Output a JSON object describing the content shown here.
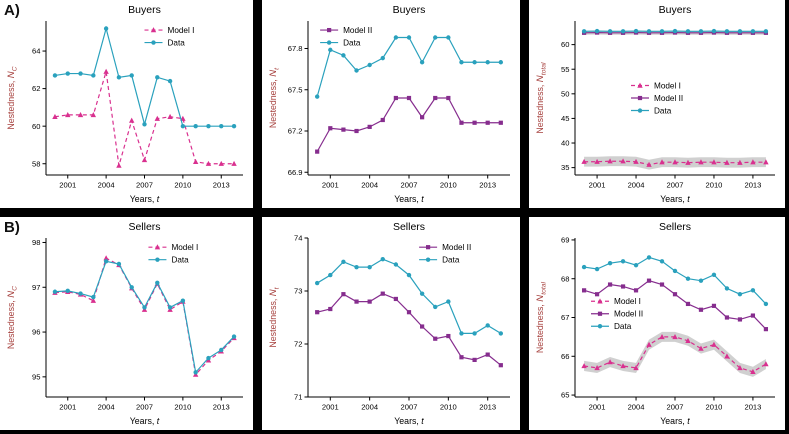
{
  "page": {
    "label_a": "A)",
    "label_b": "B)"
  },
  "colors": {
    "model1": "#d9308f",
    "model2": "#862d8e",
    "data": "#2aa1bd",
    "band": "#c8c8c8",
    "axis_label": "#a6403d",
    "axis": "#000000",
    "background": "#ffffff",
    "divider": "#000000"
  },
  "legend_labels": {
    "model1": "Model I",
    "model2": "Model II",
    "data": "Data"
  },
  "series_styles": {
    "model1": {
      "dash": "4 3",
      "marker": "triangle"
    },
    "model2": {
      "dash": "",
      "marker": "square"
    },
    "data": {
      "dash": "",
      "marker": "circle"
    }
  },
  "chart_data": [
    {
      "id": "buyers-nc",
      "type": "line",
      "title": "Buyers",
      "xlabel": {
        "pre": "Years, ",
        "var": "t"
      },
      "ylabel": {
        "pre": "Nestedness, ",
        "var": "N",
        "sub": "C"
      },
      "x": [
        2000,
        2001,
        2002,
        2003,
        2004,
        2005,
        2006,
        2007,
        2008,
        2009,
        2010,
        2011,
        2012,
        2013,
        2014
      ],
      "xlim": [
        1999.3,
        2014.7
      ],
      "xticks": [
        2001,
        2004,
        2007,
        2010,
        2013
      ],
      "ylim": [
        57.4,
        65.6
      ],
      "yticks": [
        58,
        60,
        62,
        64
      ],
      "legend": {
        "position": "top-right",
        "x": 0.5,
        "y": 0.02,
        "items": [
          "model1",
          "data"
        ]
      },
      "series": [
        {
          "key": "model1",
          "name": "Model I",
          "values": [
            60.5,
            60.6,
            60.6,
            60.6,
            62.9,
            57.9,
            60.3,
            58.2,
            60.4,
            60.5,
            60.4,
            58.1,
            58.0,
            58.0,
            58.0
          ]
        },
        {
          "key": "data",
          "name": "Data",
          "values": [
            62.7,
            62.8,
            62.8,
            62.7,
            65.2,
            62.6,
            62.7,
            60.1,
            62.6,
            62.4,
            60.0,
            60.0,
            60.0,
            60.0,
            60.0
          ]
        }
      ]
    },
    {
      "id": "buyers-nt",
      "type": "line",
      "title": "Buyers",
      "xlabel": {
        "pre": "Years, ",
        "var": "t"
      },
      "ylabel": {
        "pre": "Nestedness, ",
        "var": "N",
        "sub": "t"
      },
      "x": [
        2000,
        2001,
        2002,
        2003,
        2004,
        2005,
        2006,
        2007,
        2008,
        2009,
        2010,
        2011,
        2012,
        2013,
        2014
      ],
      "xlim": [
        1999.3,
        2014.7
      ],
      "xticks": [
        2001,
        2004,
        2007,
        2010,
        2013
      ],
      "ylim": [
        66.88,
        68.0
      ],
      "yticks": [
        66.9,
        67.2,
        67.5,
        67.8
      ],
      "legend": {
        "position": "top-left",
        "x": 0.06,
        "y": 0.02,
        "items": [
          "model2",
          "data"
        ]
      },
      "series": [
        {
          "key": "model2",
          "name": "Model II",
          "values": [
            67.05,
            67.22,
            67.21,
            67.2,
            67.23,
            67.28,
            67.44,
            67.44,
            67.3,
            67.44,
            67.44,
            67.26,
            67.26,
            67.26,
            67.26
          ]
        },
        {
          "key": "data",
          "name": "Data",
          "values": [
            67.45,
            67.79,
            67.75,
            67.64,
            67.68,
            67.73,
            67.88,
            67.88,
            67.7,
            67.88,
            67.88,
            67.7,
            67.7,
            67.7,
            67.7
          ]
        }
      ]
    },
    {
      "id": "buyers-ntotal",
      "type": "line",
      "title": "Buyers",
      "xlabel": {
        "pre": "Years, ",
        "var": "t"
      },
      "ylabel": {
        "pre": "Nestedness, ",
        "var": "N",
        "sub": "total"
      },
      "x": [
        2000,
        2001,
        2002,
        2003,
        2004,
        2005,
        2006,
        2007,
        2008,
        2009,
        2010,
        2011,
        2012,
        2013,
        2014
      ],
      "xlim": [
        1999.3,
        2014.7
      ],
      "xticks": [
        2001,
        2004,
        2007,
        2010,
        2013
      ],
      "ylim": [
        33.5,
        64.8
      ],
      "yticks": [
        35,
        40,
        45,
        50,
        55,
        60
      ],
      "legend": {
        "position": "middle-left",
        "x": 0.28,
        "y": 0.38,
        "items": [
          "model1",
          "model2",
          "data"
        ]
      },
      "series": [
        {
          "key": "model1",
          "name": "Model I",
          "band": 1.0,
          "values": [
            36.2,
            36.2,
            36.3,
            36.3,
            36.2,
            35.6,
            36.1,
            36.1,
            36.0,
            36.1,
            36.1,
            36.0,
            36.0,
            36.1,
            36.1
          ]
        },
        {
          "key": "model2",
          "name": "Model II",
          "band": 0.4,
          "values": [
            62.4,
            62.45,
            62.4,
            62.4,
            62.45,
            62.4,
            62.4,
            62.45,
            62.4,
            62.4,
            62.45,
            62.4,
            62.4,
            62.4,
            62.4
          ]
        },
        {
          "key": "data",
          "name": "Data",
          "values": [
            62.7,
            62.75,
            62.7,
            62.7,
            62.75,
            62.7,
            62.7,
            62.75,
            62.7,
            62.7,
            62.75,
            62.7,
            62.7,
            62.7,
            62.7
          ]
        }
      ]
    },
    {
      "id": "sellers-nc",
      "type": "line",
      "title": "Sellers",
      "xlabel": {
        "pre": "Years, ",
        "var": "t"
      },
      "ylabel": {
        "pre": "Nestedness, ",
        "var": "N",
        "sub": "C"
      },
      "x": [
        2000,
        2001,
        2002,
        2003,
        2004,
        2005,
        2006,
        2007,
        2008,
        2009,
        2010,
        2011,
        2012,
        2013,
        2014
      ],
      "xlim": [
        1999.3,
        2014.7
      ],
      "xticks": [
        2001,
        2004,
        2007,
        2010,
        2013
      ],
      "ylim": [
        94.55,
        98.1
      ],
      "yticks": [
        95,
        96,
        97,
        98
      ],
      "legend": {
        "position": "top-right",
        "x": 0.52,
        "y": 0.02,
        "items": [
          "model1",
          "data"
        ]
      },
      "series": [
        {
          "key": "model1",
          "name": "Model I",
          "values": [
            96.88,
            96.9,
            96.84,
            96.7,
            97.65,
            97.5,
            96.98,
            96.5,
            97.08,
            96.5,
            96.68,
            95.05,
            95.37,
            95.57,
            95.87
          ]
        },
        {
          "key": "data",
          "name": "Data",
          "values": [
            96.9,
            96.92,
            96.86,
            96.78,
            97.58,
            97.52,
            97.0,
            96.55,
            97.1,
            96.55,
            96.7,
            95.1,
            95.42,
            95.6,
            95.9
          ]
        }
      ]
    },
    {
      "id": "sellers-nt",
      "type": "line",
      "title": "Sellers",
      "xlabel": {
        "pre": "Years, ",
        "var": "t"
      },
      "ylabel": {
        "pre": "Nestedness, ",
        "var": "N",
        "sub": "t"
      },
      "x": [
        2000,
        2001,
        2002,
        2003,
        2004,
        2005,
        2006,
        2007,
        2008,
        2009,
        2010,
        2011,
        2012,
        2013,
        2014
      ],
      "xlim": [
        1999.3,
        2014.7
      ],
      "xticks": [
        2001,
        2004,
        2007,
        2010,
        2013
      ],
      "ylim": [
        71,
        74
      ],
      "yticks": [
        71,
        72,
        73,
        74
      ],
      "legend": {
        "position": "top-right",
        "x": 0.55,
        "y": 0.02,
        "items": [
          "model2",
          "data"
        ]
      },
      "series": [
        {
          "key": "model2",
          "name": "Model II",
          "values": [
            72.6,
            72.66,
            72.94,
            72.8,
            72.8,
            72.95,
            72.85,
            72.6,
            72.33,
            72.1,
            72.15,
            71.75,
            71.7,
            71.8,
            71.6
          ]
        },
        {
          "key": "data",
          "name": "Data",
          "values": [
            73.15,
            73.3,
            73.55,
            73.45,
            73.45,
            73.6,
            73.5,
            73.3,
            72.95,
            72.7,
            72.8,
            72.2,
            72.2,
            72.35,
            72.2
          ]
        }
      ]
    },
    {
      "id": "sellers-ntotal",
      "type": "line",
      "title": "Sellers",
      "xlabel": {
        "pre": "Years, ",
        "var": "t"
      },
      "ylabel": {
        "pre": "Nestedness, ",
        "var": "N",
        "sub": "total"
      },
      "x": [
        2000,
        2001,
        2002,
        2003,
        2004,
        2005,
        2006,
        2007,
        2008,
        2009,
        2010,
        2011,
        2012,
        2013,
        2014
      ],
      "xlim": [
        1999.3,
        2014.7
      ],
      "xticks": [
        2001,
        2004,
        2007,
        2010,
        2013
      ],
      "ylim": [
        64.95,
        69.05
      ],
      "yticks": [
        65,
        66,
        67,
        68,
        69
      ],
      "legend": {
        "position": "middle-left",
        "x": 0.08,
        "y": 0.36,
        "items": [
          "model1",
          "model2",
          "data"
        ]
      },
      "series": [
        {
          "key": "model1",
          "name": "Model I",
          "band": 0.13,
          "values": [
            65.75,
            65.7,
            65.85,
            65.75,
            65.7,
            66.3,
            66.5,
            66.5,
            66.4,
            66.2,
            66.3,
            66.0,
            65.7,
            65.6,
            65.8
          ]
        },
        {
          "key": "model2",
          "name": "Model II",
          "values": [
            67.7,
            67.6,
            67.85,
            67.8,
            67.7,
            67.95,
            67.85,
            67.6,
            67.35,
            67.2,
            67.3,
            67.0,
            66.95,
            67.05,
            66.7
          ]
        },
        {
          "key": "data",
          "name": "Data",
          "values": [
            68.3,
            68.25,
            68.4,
            68.45,
            68.35,
            68.55,
            68.45,
            68.2,
            68.0,
            67.95,
            68.1,
            67.75,
            67.6,
            67.7,
            67.35
          ]
        }
      ]
    }
  ]
}
